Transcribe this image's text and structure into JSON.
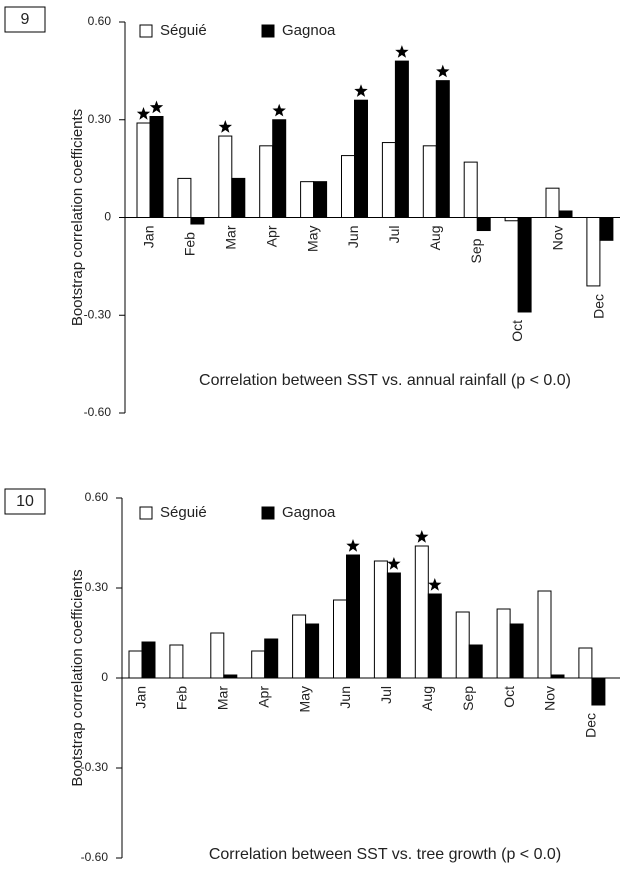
{
  "chart_data": [
    {
      "type": "bar",
      "panel": "9",
      "title": "Correlation between SST vs. annual rainfall (p < 0.0)",
      "y_label": "Bootstrap correlation coefficients",
      "categories": [
        "Jan",
        "Feb",
        "Mar",
        "Apr",
        "May",
        "Jun",
        "Jul",
        "Aug",
        "Sep",
        "Oct",
        "Nov",
        "Dec"
      ],
      "series": [
        {
          "name": "Séguié",
          "color": "#ffffff",
          "values": [
            0.29,
            0.12,
            0.25,
            0.22,
            0.11,
            0.19,
            0.23,
            0.22,
            0.17,
            -0.01,
            0.09,
            -0.21
          ],
          "significant": [
            0,
            2
          ]
        },
        {
          "name": "Gagnoa",
          "color": "#000000",
          "values": [
            0.31,
            -0.02,
            0.12,
            0.3,
            0.11,
            0.36,
            0.48,
            0.42,
            -0.04,
            -0.29,
            0.02,
            -0.07
          ],
          "significant": [
            0,
            3,
            5,
            6,
            7
          ]
        }
      ],
      "ylim": [
        -0.6,
        0.6
      ],
      "yticks": [
        {
          "value": 0.6,
          "label": "0.60"
        },
        {
          "value": 0.3,
          "label": "0.30"
        },
        0,
        {
          "value": -0.3,
          "label": "-0.30"
        },
        {
          "value": -0.6,
          "label": "-0.60"
        }
      ]
    },
    {
      "type": "bar",
      "panel": "10",
      "title": "Correlation between SST vs. tree growth (p < 0.0)",
      "y_label": "Bootstrap correlation coefficients",
      "categories": [
        "Jan",
        "Feb",
        "Mar",
        "Apr",
        "May",
        "Jun",
        "Jul",
        "Aug",
        "Sep",
        "Oct",
        "Nov",
        "Dec"
      ],
      "series": [
        {
          "name": "Séguié",
          "color": "#ffffff",
          "values": [
            0.09,
            0.11,
            0.15,
            0.09,
            0.21,
            0.26,
            0.39,
            0.44,
            0.22,
            0.23,
            0.29,
            0.1
          ],
          "significant": [
            7
          ]
        },
        {
          "name": "Gagnoa",
          "color": "#000000",
          "values": [
            0.12,
            null,
            0.01,
            0.13,
            0.18,
            0.41,
            0.35,
            0.28,
            0.11,
            0.18,
            0.01,
            -0.09
          ],
          "significant": [
            5,
            6,
            7
          ]
        }
      ],
      "ylim": [
        -0.6,
        0.6
      ],
      "yticks": [
        {
          "value": 0.6,
          "label": "0.60"
        },
        {
          "value": 0.3,
          "label": "0.30"
        },
        0,
        {
          "value": -0.3,
          "label": "-0.30"
        },
        {
          "value": -0.6,
          "label": "-0.60"
        }
      ]
    }
  ]
}
